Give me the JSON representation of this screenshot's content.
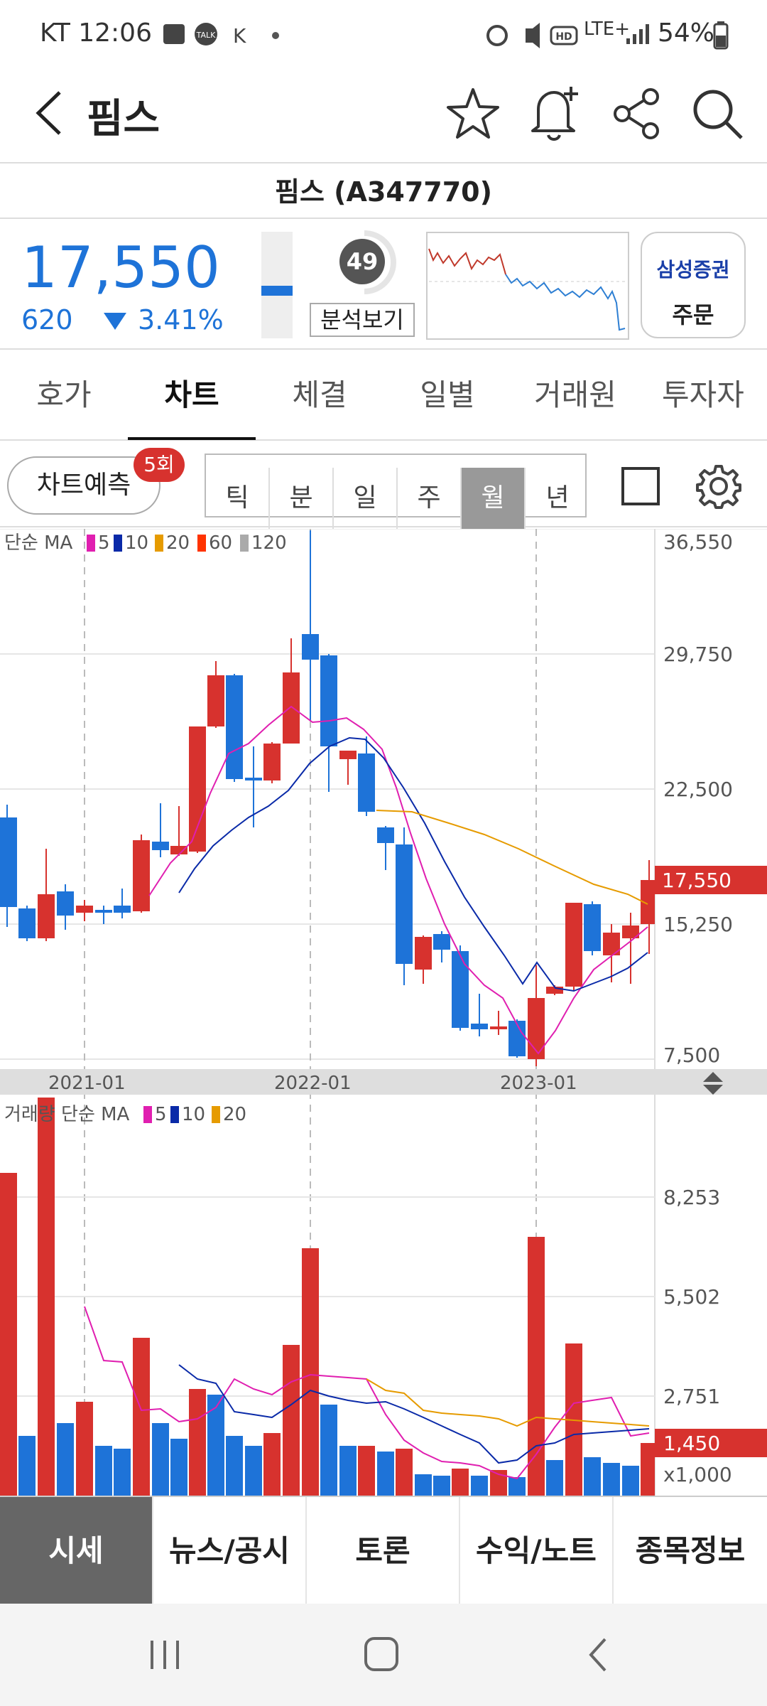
{
  "status": {
    "carrier_time": "KT 12:06",
    "network": "LTE+",
    "battery": "54%"
  },
  "header": {
    "title": "핌스"
  },
  "stock": {
    "name_code": "핌스 (A347770)",
    "price": "17,550",
    "change": "620",
    "change_pct": "3.41%",
    "score": "49",
    "analysis_label": "분석보기",
    "broker": "삼성증권",
    "order_label": "주문"
  },
  "tabs": [
    "호가",
    "차트",
    "체결",
    "일별",
    "거래원",
    "투자자"
  ],
  "toolbar": {
    "predict_label": "차트예측",
    "predict_badge": "5회",
    "periods": [
      "틱",
      "분",
      "일",
      "주",
      "월",
      "년"
    ],
    "selected_period": "월"
  },
  "chart": {
    "ma_legend": {
      "prefix": "단순 MA",
      "items": [
        {
          "label": "5",
          "color": "#e01fb0"
        },
        {
          "label": "10",
          "color": "#0a2aa8"
        },
        {
          "label": "20",
          "color": "#e69b00"
        },
        {
          "label": "60",
          "color": "#ff3300"
        },
        {
          "label": "120",
          "color": "#aaaaaa"
        }
      ]
    },
    "price_ticks": [
      "36,550",
      "29,750",
      "22,500",
      "15,250",
      "7,500"
    ],
    "current_price_tag": "17,550",
    "date_labels": [
      "2021-01",
      "2022-01",
      "2023-01"
    ],
    "vol_legend": {
      "prefix": "거래량 단순 MA",
      "items": [
        {
          "label": "5",
          "color": "#e01fb0"
        },
        {
          "label": "10",
          "color": "#0a2aa8"
        },
        {
          "label": "20",
          "color": "#e69b00"
        }
      ]
    },
    "vol_ticks": [
      "8,253",
      "5,502",
      "2,751"
    ],
    "current_vol_tag": "1,450",
    "vol_unit": "x1,000"
  },
  "colors": {
    "up": "#d7322e",
    "down": "#1e73d8",
    "accent_blue": "#1e73d8"
  },
  "bottom_nav": [
    "시세",
    "뉴스/공시",
    "토론",
    "수익/노트",
    "종목정보"
  ]
}
